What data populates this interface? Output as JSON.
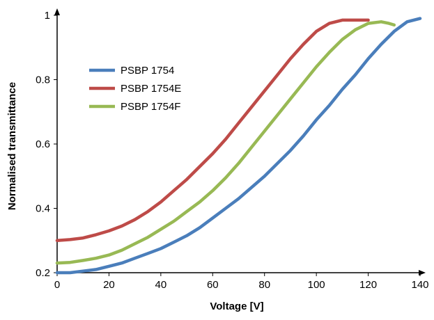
{
  "chart_data": {
    "type": "line",
    "title": "",
    "xlabel": "Voltage [V]",
    "ylabel": "Normalised transmittance",
    "xlim": [
      0,
      140
    ],
    "ylim": [
      0.2,
      1.0
    ],
    "x_ticks": [
      0,
      20,
      40,
      60,
      80,
      100,
      120,
      140
    ],
    "y_ticks": [
      0.2,
      0.4,
      0.6,
      0.8,
      1.0
    ],
    "y_tick_labels": [
      "0.2",
      "0.4",
      "0.6",
      "0.8",
      "1"
    ],
    "grid": false,
    "legend_position": "top-left",
    "series": [
      {
        "name": "PSBP 1754",
        "color": "#4a7ebb",
        "x": [
          0,
          5,
          10,
          15,
          20,
          25,
          30,
          35,
          40,
          45,
          50,
          55,
          60,
          65,
          70,
          75,
          80,
          85,
          90,
          95,
          100,
          105,
          110,
          115,
          120,
          125,
          130,
          135,
          140
        ],
        "y": [
          0.2,
          0.2,
          0.205,
          0.21,
          0.22,
          0.23,
          0.245,
          0.26,
          0.275,
          0.295,
          0.315,
          0.34,
          0.37,
          0.4,
          0.43,
          0.465,
          0.5,
          0.54,
          0.58,
          0.625,
          0.675,
          0.72,
          0.77,
          0.815,
          0.865,
          0.91,
          0.95,
          0.98,
          0.99
        ]
      },
      {
        "name": "PSBP 1754E",
        "color": "#be4b48",
        "x": [
          0,
          5,
          10,
          15,
          20,
          25,
          30,
          35,
          40,
          45,
          50,
          55,
          60,
          65,
          70,
          75,
          80,
          85,
          90,
          95,
          100,
          105,
          110,
          115,
          120
        ],
        "y": [
          0.3,
          0.303,
          0.308,
          0.318,
          0.33,
          0.345,
          0.365,
          0.39,
          0.42,
          0.455,
          0.49,
          0.53,
          0.57,
          0.615,
          0.665,
          0.715,
          0.765,
          0.815,
          0.865,
          0.91,
          0.95,
          0.975,
          0.985,
          0.985,
          0.985
        ]
      },
      {
        "name": "PSBP 1754F",
        "color": "#98b954",
        "x": [
          0,
          5,
          10,
          15,
          20,
          25,
          30,
          35,
          40,
          45,
          50,
          55,
          60,
          65,
          70,
          75,
          80,
          85,
          90,
          95,
          100,
          105,
          110,
          115,
          120,
          125,
          128,
          130
        ],
        "y": [
          0.23,
          0.232,
          0.238,
          0.245,
          0.255,
          0.27,
          0.29,
          0.31,
          0.335,
          0.36,
          0.39,
          0.42,
          0.455,
          0.495,
          0.54,
          0.59,
          0.64,
          0.69,
          0.74,
          0.79,
          0.84,
          0.885,
          0.925,
          0.955,
          0.975,
          0.98,
          0.975,
          0.97
        ]
      }
    ]
  }
}
